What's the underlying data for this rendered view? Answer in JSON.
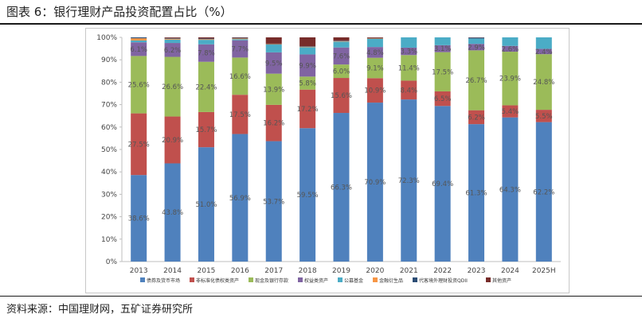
{
  "figure": {
    "title": "图表 6：银行理财产品投资配置占比（%）",
    "source": "资料来源：中国理财网，五矿证券研究所"
  },
  "chart_data": {
    "type": "bar",
    "stacked": true,
    "categories": [
      "2013",
      "2014",
      "2015",
      "2016",
      "2017",
      "2018",
      "2019",
      "2020",
      "2021",
      "2022",
      "2023",
      "2024",
      "2025H"
    ],
    "y_ticks": [
      "0%",
      "10%",
      "20%",
      "30%",
      "40%",
      "50%",
      "60%",
      "70%",
      "80%",
      "90%",
      "100%"
    ],
    "ylim": [
      0,
      100
    ],
    "series": [
      {
        "name": "债券及货币市场",
        "color": "#4f81bd",
        "values": [
          38.6,
          43.8,
          51.0,
          56.9,
          53.7,
          59.5,
          66.3,
          70.9,
          72.3,
          69.4,
          61.3,
          64.3,
          62.2
        ],
        "labels": [
          "38.6%",
          "43.8%",
          "51.0%",
          "56.9%",
          "53.7%",
          "59.5%",
          "66.3%",
          "70.9%",
          "72.3%",
          "69.4%",
          "61.3%",
          "64.3%",
          "62.2%"
        ]
      },
      {
        "name": "非标准化债权类资产",
        "color": "#c0504d",
        "values": [
          27.5,
          20.9,
          15.7,
          17.5,
          16.2,
          17.2,
          15.6,
          10.9,
          8.4,
          6.5,
          6.2,
          5.4,
          5.5
        ],
        "labels": [
          "27.5%",
          "20.9%",
          "15.7%",
          "17.5%",
          "16.2%",
          "17.2%",
          "15.6%",
          "10.9%",
          "8.4%",
          "6.5%",
          "6.2%",
          "5.4%",
          "5.5%"
        ]
      },
      {
        "name": "现金及银行存款",
        "color": "#9bbb59",
        "values": [
          25.6,
          26.6,
          22.4,
          16.6,
          13.9,
          5.8,
          6.0,
          9.1,
          11.4,
          17.5,
          26.7,
          23.9,
          24.8
        ],
        "labels": [
          "25.6%",
          "26.6%",
          "22.4%",
          "16.6%",
          "13.9%",
          "5.8%",
          "6.0%",
          "9.1%",
          "11.4%",
          "17.5%",
          "26.7%",
          "23.9%",
          "24.8%"
        ]
      },
      {
        "name": "权益类资产",
        "color": "#8064a2",
        "values": [
          6.1,
          6.2,
          7.8,
          7.7,
          9.5,
          9.9,
          7.6,
          4.8,
          3.3,
          3.1,
          2.9,
          2.6,
          2.4
        ],
        "labels": [
          "6.1%",
          "6.2%",
          "7.8%",
          "7.7%",
          "9.5%",
          "9.9%",
          "7.6%",
          "4.8%",
          "3.3%",
          "3.1%",
          "2.9%",
          "2.6%",
          "2.4%"
        ]
      },
      {
        "name": "公募基金",
        "color": "#4bacc6",
        "values": [
          0.8,
          1.5,
          2.0,
          0.5,
          3.5,
          3.2,
          2.6,
          3.6,
          4.6,
          3.5,
          2.4,
          3.8,
          5.1
        ],
        "labels": []
      },
      {
        "name": "金融衍生品",
        "color": "#f79646",
        "values": [
          1.0,
          0.4,
          0.3,
          0.3,
          0.2,
          0.2,
          0.2,
          0.2,
          0.0,
          0.0,
          0.0,
          0.0,
          0.0
        ],
        "labels": []
      },
      {
        "name": "代客境外理财投资QDII",
        "color": "#2c4d75",
        "values": [
          0.4,
          0.3,
          0.3,
          0.3,
          0.2,
          0.2,
          0.2,
          0.2,
          0.0,
          0.0,
          0.4,
          0.0,
          0.0
        ],
        "labels": []
      },
      {
        "name": "其他资产",
        "color": "#772c2a",
        "values": [
          0.0,
          0.3,
          0.5,
          0.2,
          2.8,
          4.0,
          1.5,
          0.3,
          0.0,
          0.0,
          0.1,
          0.0,
          0.0
        ],
        "labels": []
      }
    ]
  }
}
